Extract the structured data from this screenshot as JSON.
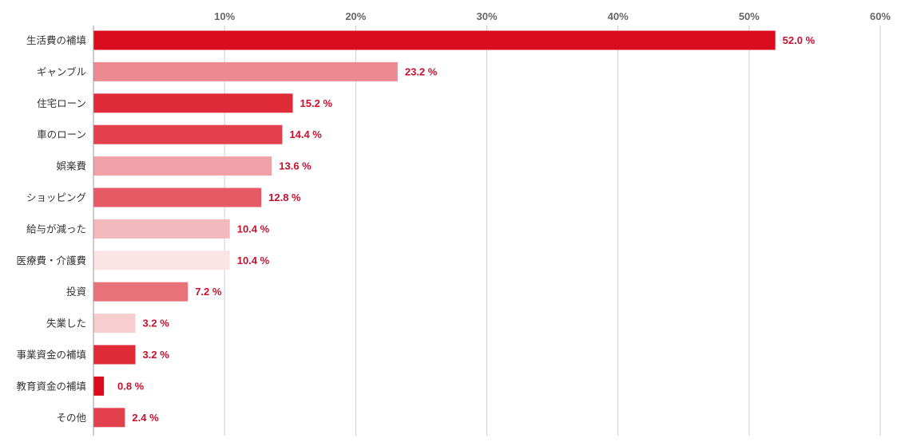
{
  "chart_data": {
    "type": "bar",
    "orientation": "horizontal",
    "categories": [
      "生活費の補填",
      "ギャンブル",
      "住宅ローン",
      "車のローン",
      "娯楽費",
      "ショッピング",
      "給与が減った",
      "医療費・介護費",
      "投資",
      "失業した",
      "事業資金の補填",
      "教育資金の補填",
      "その他"
    ],
    "values": [
      52.0,
      23.2,
      15.2,
      14.4,
      13.6,
      12.8,
      10.4,
      10.4,
      7.2,
      3.2,
      3.2,
      0.8,
      2.4
    ],
    "value_labels": [
      "52.0 %",
      "23.2 %",
      "15.2 %",
      "14.4 %",
      "13.6 %",
      "12.8 %",
      "10.4 %",
      "10.4 %",
      "7.2 %",
      "3.2 %",
      "3.2 %",
      "0.8 %",
      "2.4 %"
    ],
    "bar_colors": [
      "#d90b1c",
      "#ec8a92",
      "#df2a37",
      "#e2404c",
      "#f0a1a8",
      "#e55a64",
      "#f4b9bd",
      "#fbe4e6",
      "#e8717a",
      "#f7cdd0",
      "#df2a37",
      "#d90b1c",
      "#e2404c"
    ],
    "xticks": [
      10,
      20,
      30,
      40,
      50,
      60
    ],
    "xtick_labels": [
      "10%",
      "20%",
      "30%",
      "40%",
      "50%",
      "60%"
    ],
    "xlim": [
      0,
      60
    ],
    "x_axis_position": "top",
    "grid": true,
    "title": "",
    "xlabel": "",
    "ylabel": ""
  }
}
